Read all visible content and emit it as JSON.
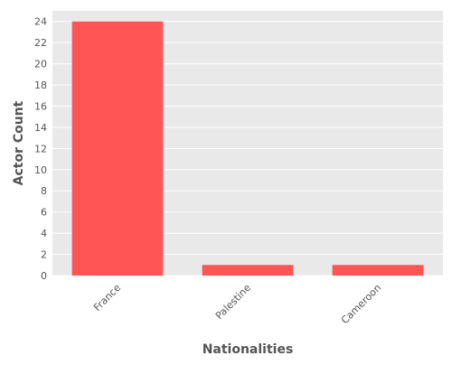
{
  "chart_data": {
    "type": "bar",
    "categories": [
      "France",
      "Palestine",
      "Cameroon"
    ],
    "values": [
      24,
      1,
      1
    ],
    "title": "",
    "xlabel": "Nationalities",
    "ylabel": "Actor Count",
    "ylim": [
      0,
      25
    ],
    "yticks": [
      0,
      2,
      4,
      6,
      8,
      10,
      12,
      14,
      16,
      18,
      20,
      22,
      24
    ],
    "grid": true,
    "legend": "none",
    "colors": {
      "bar": "#FF5555",
      "plot_background": "#E9E9E9",
      "grid": "#FFFFFF",
      "text": "#555555"
    }
  }
}
